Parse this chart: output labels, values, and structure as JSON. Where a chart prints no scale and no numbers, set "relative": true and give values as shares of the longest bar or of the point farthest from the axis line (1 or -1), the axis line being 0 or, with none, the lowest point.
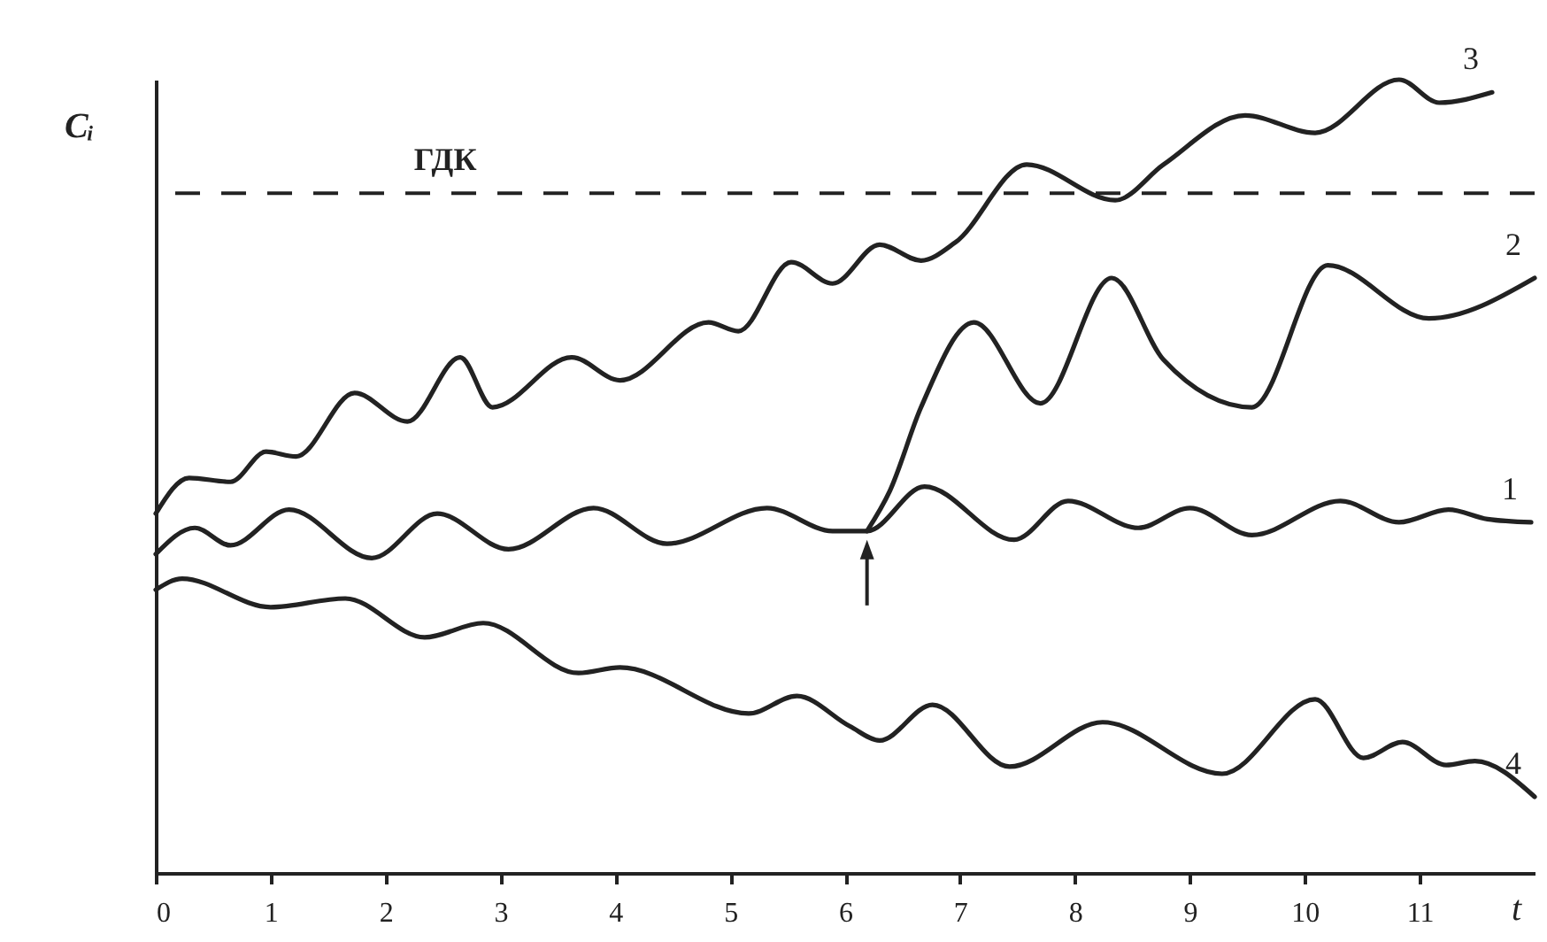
{
  "chart_data": {
    "type": "line",
    "relative": true,
    "xlabel": "t",
    "ylabel": "Cᵢ",
    "xlim": [
      0,
      12
    ],
    "xticks": [
      0,
      1,
      2,
      3,
      4,
      5,
      6,
      7,
      8,
      9,
      10,
      11
    ],
    "ylim": [
      0,
      1
    ],
    "grid": false,
    "legend": false,
    "line_style": "solid",
    "marker": "none",
    "ref_lines": [
      {
        "axis": "y",
        "value": 0.857,
        "label": "ГДК",
        "line_style": "dashed",
        "color": "#222222"
      }
    ],
    "series": [
      {
        "name": "1",
        "color": "#222222",
        "x": [
          0,
          0.34,
          0.65,
          1.16,
          1.88,
          2.45,
          3.07,
          3.81,
          4.45,
          5.32,
          5.89,
          6.19,
          6.69,
          7.47,
          7.94,
          8.55,
          9.0,
          9.54,
          10.31,
          10.82,
          11.25,
          11.59,
          11.97
        ],
        "values": [
          0.402,
          0.435,
          0.413,
          0.458,
          0.397,
          0.453,
          0.408,
          0.46,
          0.415,
          0.46,
          0.431,
          0.431,
          0.487,
          0.42,
          0.469,
          0.435,
          0.46,
          0.426,
          0.469,
          0.442,
          0.458,
          0.446,
          0.442
        ]
      },
      {
        "name": "2",
        "color": "#222222",
        "x": [
          6.19,
          6.39,
          6.66,
          7.12,
          7.7,
          8.32,
          8.77,
          9.54,
          10.2,
          11.08,
          12.0
        ],
        "values": [
          0.431,
          0.482,
          0.587,
          0.694,
          0.592,
          0.75,
          0.647,
          0.587,
          0.766,
          0.699,
          0.75
        ]
      },
      {
        "name": "3",
        "color": "#222222",
        "x": [
          0,
          0.29,
          0.65,
          0.96,
          1.22,
          1.73,
          2.19,
          2.65,
          2.93,
          3.62,
          4.04,
          4.81,
          5.07,
          5.53,
          5.89,
          6.3,
          6.66,
          6.96,
          7.58,
          8.35,
          8.77,
          9.48,
          10.09,
          10.82,
          11.17,
          11.63
        ],
        "values": [
          0.453,
          0.498,
          0.493,
          0.531,
          0.525,
          0.605,
          0.569,
          0.65,
          0.587,
          0.65,
          0.621,
          0.694,
          0.683,
          0.77,
          0.743,
          0.792,
          0.772,
          0.795,
          0.893,
          0.848,
          0.893,
          0.955,
          0.933,
          1.0,
          0.971,
          0.984
        ]
      },
      {
        "name": "4",
        "color": "#222222",
        "x": [
          0,
          0.23,
          1.0,
          1.65,
          2.34,
          2.85,
          3.68,
          4.04,
          5.16,
          5.58,
          6.04,
          6.3,
          6.76,
          7.43,
          8.24,
          9.28,
          10.09,
          10.51,
          10.85,
          11.23,
          11.48,
          12.0
        ],
        "values": [
          0.357,
          0.371,
          0.335,
          0.346,
          0.297,
          0.315,
          0.252,
          0.259,
          0.201,
          0.223,
          0.185,
          0.167,
          0.212,
          0.134,
          0.19,
          0.125,
          0.219,
          0.145,
          0.165,
          0.136,
          0.141,
          0.096
        ]
      }
    ]
  }
}
